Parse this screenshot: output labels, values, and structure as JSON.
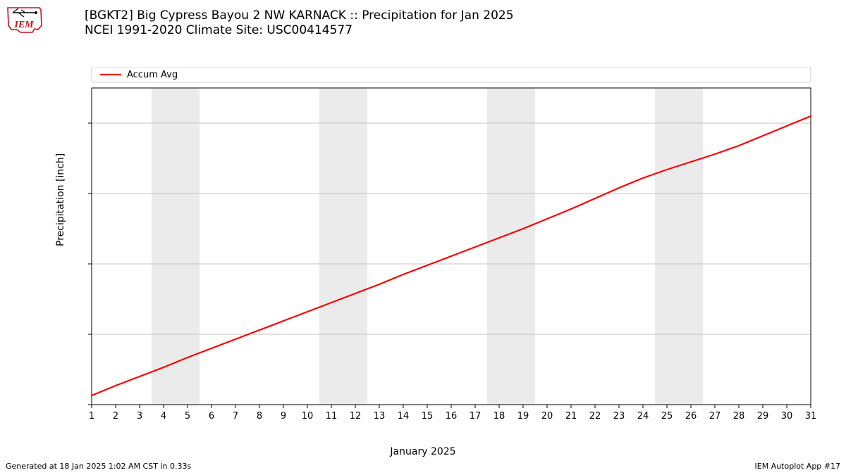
{
  "logo": {
    "text": "IEM",
    "stroke": "#c01020"
  },
  "title": {
    "line1": "[BGKT2] Big Cypress Bayou 2 NW KARNACK :: Precipitation for Jan 2025",
    "line2": "NCEI 1991-2020 Climate Site: USC00414577"
  },
  "chart": {
    "type": "line",
    "xlabel": "January 2025",
    "ylabel": "Precipitation [inch]",
    "xlim": [
      1,
      31
    ],
    "ylim": [
      0,
      4.5
    ],
    "xticks": [
      1,
      2,
      3,
      4,
      5,
      6,
      7,
      8,
      9,
      10,
      11,
      12,
      13,
      14,
      15,
      16,
      17,
      18,
      19,
      20,
      21,
      22,
      23,
      24,
      25,
      26,
      27,
      28,
      29,
      30,
      31
    ],
    "yticks": [
      0,
      1,
      2,
      3,
      4
    ],
    "grid_color": "#b0b0b0",
    "grid_width": 0.8,
    "background_color": "#ffffff",
    "weekend_fill": "#ebebeb",
    "weekend_pairs": [
      [
        4,
        5
      ],
      [
        11,
        12
      ],
      [
        18,
        19
      ],
      [
        25,
        26
      ]
    ],
    "axis_color": "#000000",
    "tick_fontsize": 13,
    "label_fontsize": 14,
    "series": [
      {
        "name": "Accum Avg",
        "color": "#ff0000",
        "line_width": 2.2,
        "x": [
          1,
          2,
          3,
          4,
          5,
          6,
          7,
          8,
          9,
          10,
          11,
          12,
          13,
          14,
          15,
          16,
          17,
          18,
          19,
          20,
          21,
          22,
          23,
          24,
          25,
          26,
          27,
          28,
          29,
          30,
          31
        ],
        "y": [
          0.13,
          0.27,
          0.4,
          0.53,
          0.67,
          0.8,
          0.93,
          1.06,
          1.19,
          1.32,
          1.45,
          1.58,
          1.71,
          1.85,
          1.98,
          2.11,
          2.24,
          2.37,
          2.5,
          2.64,
          2.78,
          2.93,
          3.08,
          3.22,
          3.34,
          3.45,
          3.56,
          3.68,
          3.82,
          3.96,
          4.1
        ]
      }
    ],
    "legend": {
      "position": "top",
      "items": [
        "Accum Avg"
      ]
    }
  },
  "footer": {
    "left": "Generated at 18 Jan 2025 1:02 AM CST in 0.33s",
    "right": "IEM Autoplot App #17"
  }
}
